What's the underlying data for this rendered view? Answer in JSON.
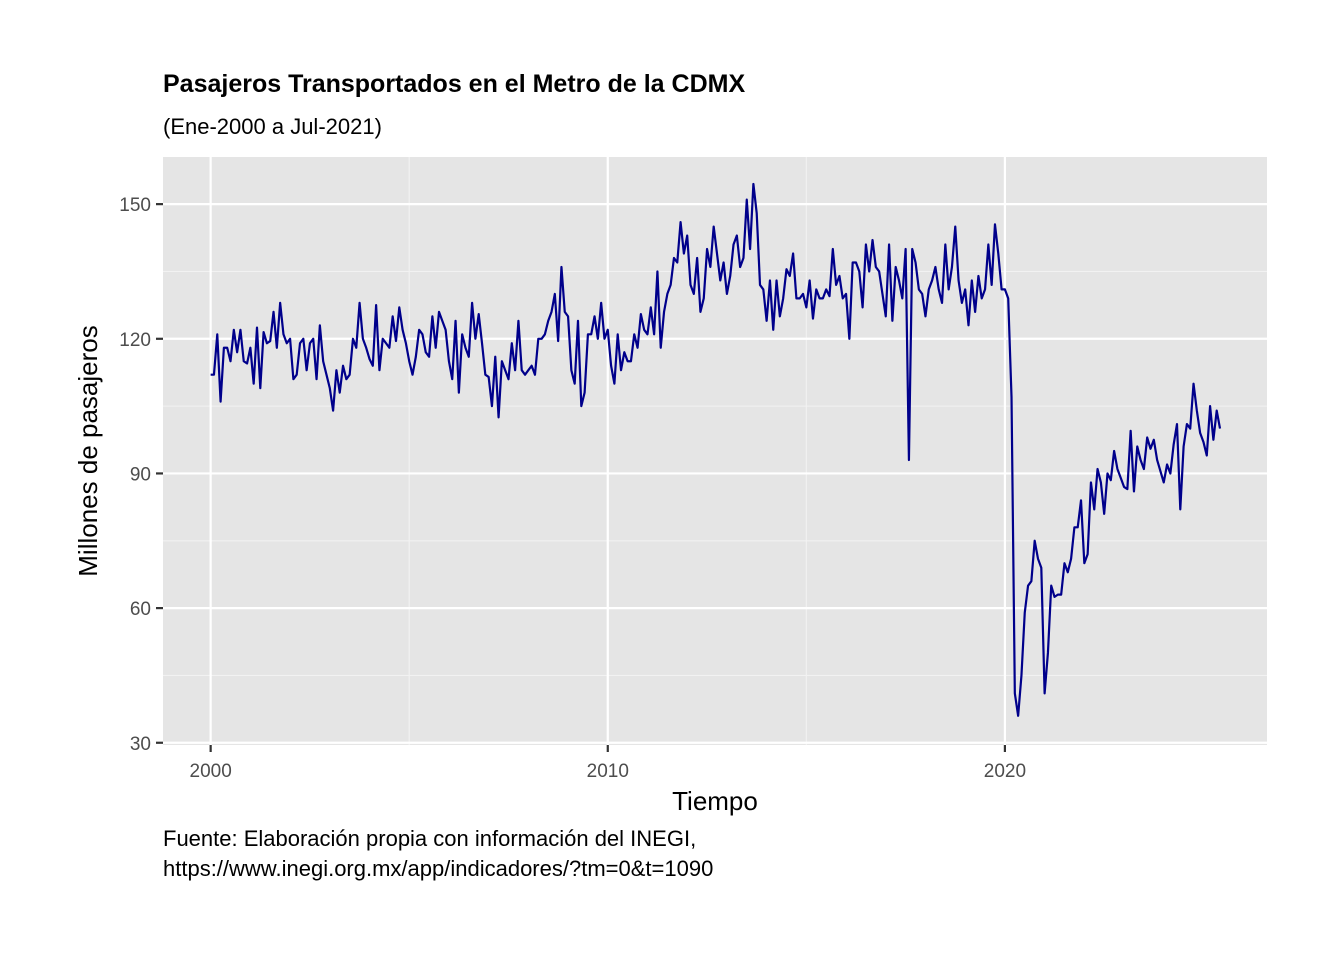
{
  "chart_data": {
    "type": "line",
    "title": "Pasajeros Transportados en el Metro de la CDMX",
    "subtitle": "(Ene-2000 a Jul-2021)",
    "xlabel": "Tiempo",
    "ylabel": "Millones de pasajeros",
    "caption_line1": "Fuente: Elaboración propia con información del INEGI,",
    "caption_line2": "https://www.inegi.org.mx/app/indicadores/?tm=0&t=1090",
    "xlim": [
      1998.8,
      2026.6
    ],
    "ylim": [
      29.5,
      160.5
    ],
    "x_ticks": [
      2000,
      2010,
      2020
    ],
    "x_tick_labels": [
      "2000",
      "2010",
      "2020"
    ],
    "y_ticks": [
      30,
      60,
      90,
      120,
      150
    ],
    "y_tick_labels": [
      "30",
      "60",
      "90",
      "120",
      "150"
    ],
    "grid": true,
    "line_color": "#00008B",
    "panel_color": "#E5E5E5",
    "x_start": 2000,
    "x_step": 0.08333333,
    "values": [
      112,
      112,
      121,
      106,
      118,
      118,
      115,
      122,
      117,
      122,
      115,
      114.5,
      118,
      110,
      122.5,
      109,
      121.5,
      119,
      119.5,
      126,
      118,
      128,
      121,
      119,
      120,
      111,
      112,
      119,
      120,
      113,
      119,
      120,
      111,
      123,
      115,
      112,
      109,
      104,
      113,
      108,
      114,
      111,
      112,
      120,
      118,
      128,
      120,
      118,
      115.5,
      114,
      127.5,
      113,
      120,
      119,
      118,
      125,
      119.5,
      127,
      122,
      119,
      115,
      112,
      116,
      122,
      121,
      117,
      116,
      125,
      118,
      126,
      124,
      122,
      115,
      111,
      124,
      108,
      121,
      118,
      116,
      128,
      120,
      125.5,
      119,
      112,
      111.5,
      105,
      116,
      102.5,
      115,
      113,
      111,
      119,
      113,
      124,
      113,
      112,
      113,
      114,
      112,
      120,
      120,
      121,
      124,
      126,
      130,
      119.5,
      136,
      126,
      125,
      113,
      110,
      124,
      105,
      108,
      121,
      121,
      125,
      120,
      128,
      120,
      122,
      114,
      110,
      121,
      113,
      117,
      115,
      115,
      121,
      118,
      125.5,
      122,
      121,
      127,
      121,
      135,
      118,
      126,
      130,
      132,
      138,
      137,
      146,
      139,
      143,
      132,
      130,
      138,
      126,
      129,
      140,
      136,
      145,
      139,
      133,
      137,
      130,
      134,
      141,
      143,
      136,
      138,
      151,
      140,
      154.5,
      148,
      132,
      131,
      124,
      133,
      122,
      133,
      125,
      129,
      135.5,
      134,
      139,
      129,
      129,
      130,
      127,
      133,
      124.5,
      131,
      129,
      129,
      131,
      129.5,
      140,
      132,
      134,
      129,
      130,
      120,
      137,
      137,
      135,
      127,
      141,
      135,
      142,
      136,
      135,
      130,
      125,
      141,
      124,
      136,
      133,
      129,
      140,
      93,
      140,
      137,
      131,
      130,
      125,
      131,
      133,
      136,
      131,
      128,
      141,
      131,
      136,
      145,
      133,
      128,
      131,
      123,
      133,
      126,
      134,
      129,
      131,
      141,
      132,
      145.5,
      139,
      131,
      131,
      129,
      107,
      41,
      36,
      45,
      59,
      65,
      66,
      75,
      71,
      69,
      41,
      50,
      65,
      62.5,
      63,
      63,
      70,
      68,
      71,
      78,
      78,
      84,
      70,
      72,
      88,
      82,
      91,
      88,
      81,
      90,
      88.5,
      95,
      91,
      89,
      87,
      86.5,
      99.5,
      86,
      96,
      93,
      91,
      98,
      95.5,
      97.5,
      93,
      90.5,
      88,
      92,
      90,
      96.5,
      101,
      82,
      96,
      101,
      100,
      110,
      104,
      99,
      97,
      94,
      105,
      97.5,
      104,
      100
    ]
  }
}
